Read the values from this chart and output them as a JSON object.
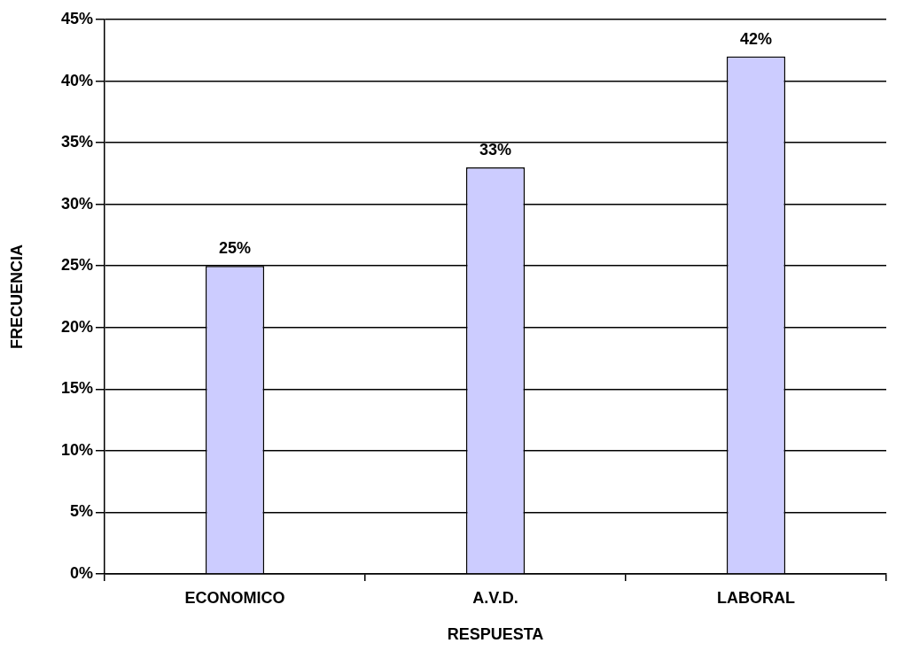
{
  "chart_data": {
    "type": "bar",
    "xlabel": "RESPUESTA",
    "ylabel": "FRECUENCIA",
    "categories": [
      "ECONOMICO",
      "A.V.D.",
      "LABORAL"
    ],
    "values": [
      25,
      33,
      42
    ],
    "value_labels": [
      "25%",
      "33%",
      "42%"
    ],
    "color": "#ccccff",
    "ylim": [
      0,
      45
    ],
    "yticks": [
      {
        "value": 0,
        "label": "0%"
      },
      {
        "value": 5,
        "label": "5%"
      },
      {
        "value": 10,
        "label": "10%"
      },
      {
        "value": 15,
        "label": "15%"
      },
      {
        "value": 20,
        "label": "20%"
      },
      {
        "value": 25,
        "label": "25%"
      },
      {
        "value": 30,
        "label": "30%"
      },
      {
        "value": 35,
        "label": "35%"
      },
      {
        "value": 40,
        "label": "40%"
      },
      {
        "value": 45,
        "label": "45%"
      }
    ],
    "grid": "y"
  }
}
